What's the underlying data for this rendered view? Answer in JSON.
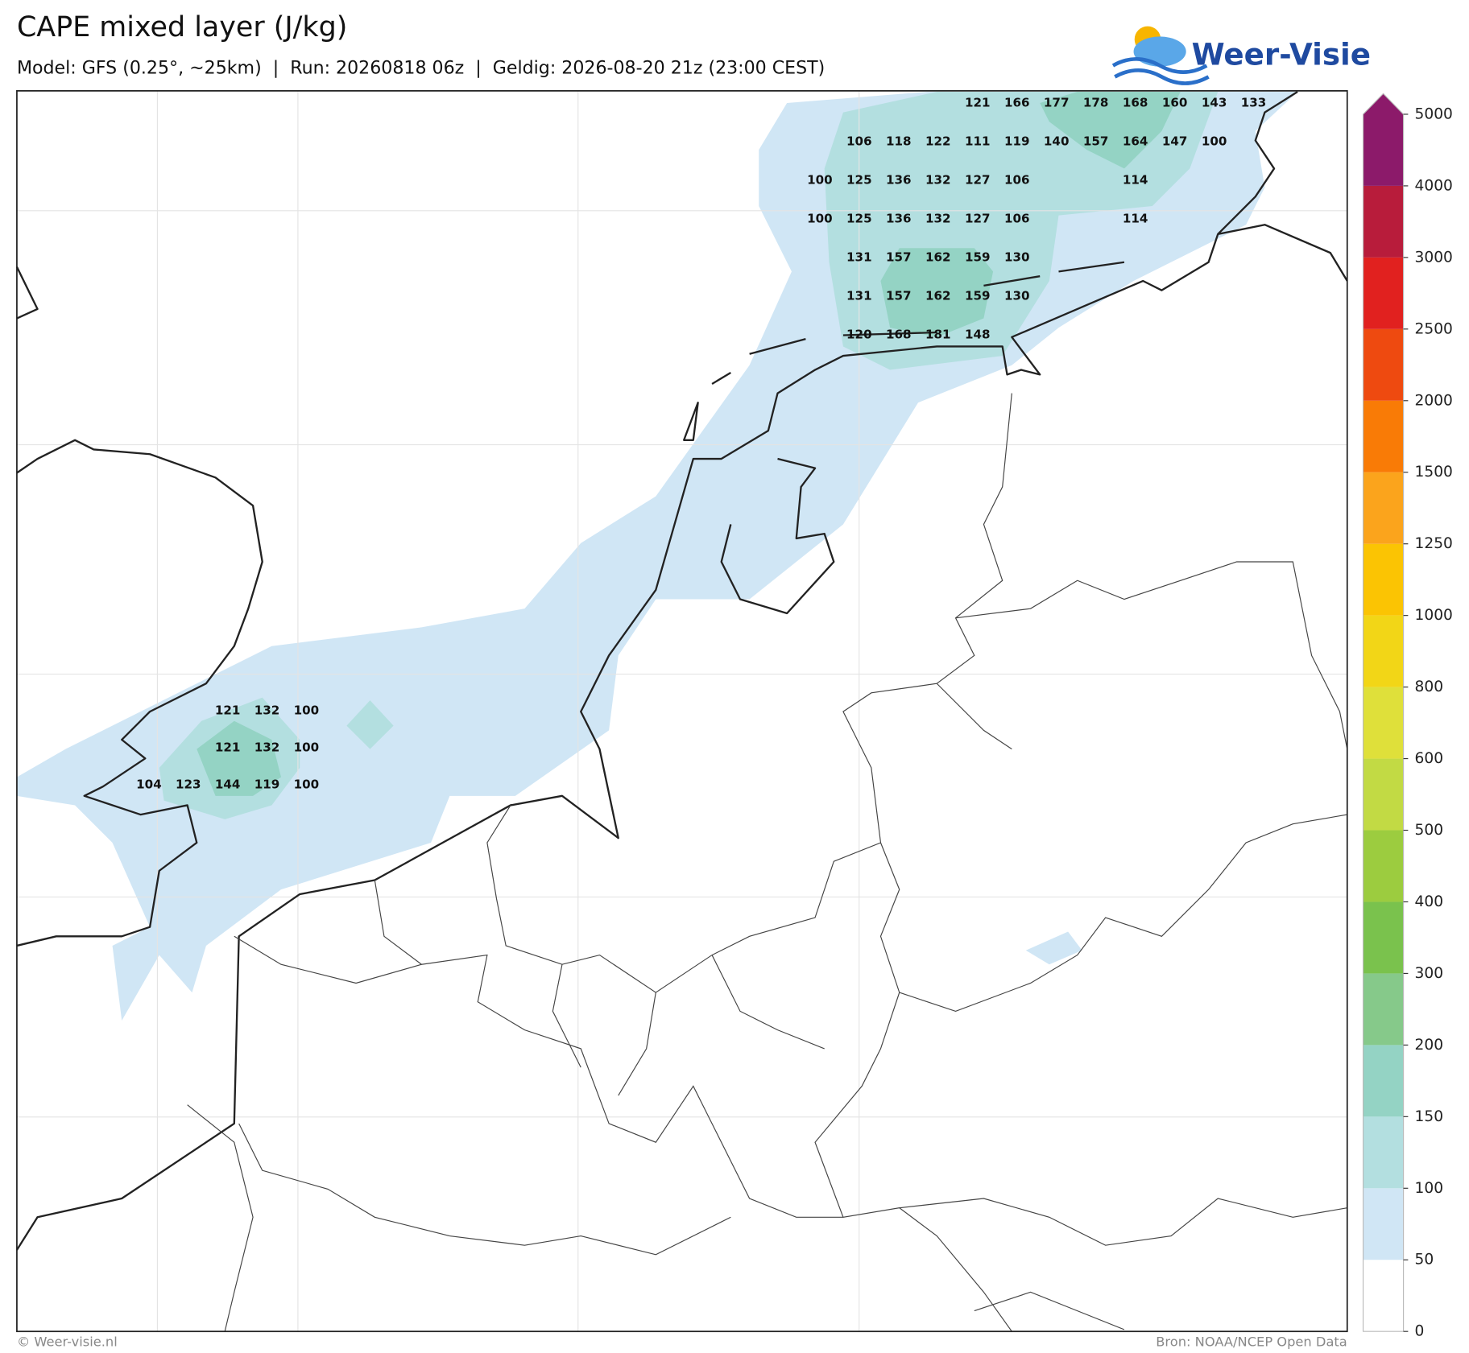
{
  "header": {
    "title": "CAPE mixed layer (J/kg)",
    "subtitle": "Model: GFS (0.25°, ~25km)  |  Run: 20260818 06z  |  Geldig: 2026-08-20 21z (23:00 CEST)",
    "logo": "Weer-Visie"
  },
  "map_labels": {
    "north": [
      [
        null,
        null,
        null,
        null,
        121,
        166,
        177,
        178,
        168,
        160,
        143,
        133
      ],
      [
        null,
        106,
        118,
        122,
        111,
        119,
        140,
        157,
        164,
        147,
        100
      ],
      [
        100,
        125,
        136,
        132,
        127,
        106,
        null,
        null,
        114
      ],
      [
        100,
        125,
        136,
        132,
        127,
        106,
        null,
        null,
        114
      ],
      [
        null,
        131,
        157,
        162,
        159,
        130
      ],
      [
        null,
        131,
        157,
        162,
        159,
        130
      ],
      [
        null,
        120,
        168,
        181,
        148
      ]
    ],
    "west": [
      [
        null,
        null,
        121,
        132,
        100
      ],
      [
        null,
        null,
        121,
        132,
        100
      ],
      [
        104,
        123,
        144,
        119,
        100
      ]
    ]
  },
  "colorbar": {
    "levels": [
      0,
      50,
      100,
      150,
      200,
      300,
      400,
      500,
      600,
      800,
      1000,
      1250,
      1500,
      2000,
      2500,
      3000,
      4000,
      5000
    ],
    "colors": [
      "#ffffff",
      "#d0e6f5",
      "#b3dfe0",
      "#94d3c4",
      "#86c98a",
      "#7ac24d",
      "#9ccc3f",
      "#c2da44",
      "#dfe03a",
      "#f2d617",
      "#fbc403",
      "#fba41c",
      "#f97b06",
      "#ee4a10",
      "#e1211f",
      "#b81c3b",
      "#8c1a6a"
    ]
  },
  "footer": {
    "left": "© Weer-visie.nl",
    "right": "Bron: NOAA/NCEP Open Data"
  }
}
